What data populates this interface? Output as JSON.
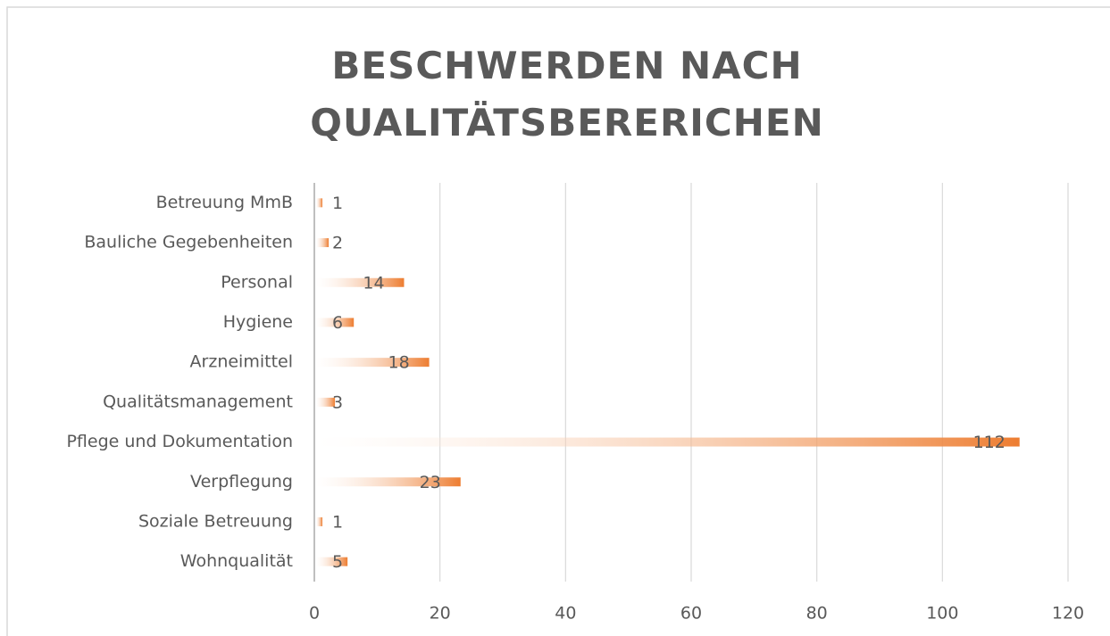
{
  "chart_data": {
    "type": "barh",
    "title": "BESCHWERDEN NACH QUALITÄTSBERERICHEN",
    "categories": [
      "Betreuung MmB",
      "Bauliche Gegebenheiten",
      "Personal",
      "Hygiene",
      "Arzneimittel",
      "Qualitätsmanagement",
      "Pflege und Dokumentation",
      "Verpflegung",
      "Soziale Betreuung",
      "Wohnqualität"
    ],
    "values": [
      1,
      2,
      14,
      6,
      18,
      3,
      112,
      23,
      1,
      5
    ],
    "color": "#ed7d31",
    "xlim": [
      0,
      120
    ],
    "xticks": [
      0,
      20,
      40,
      60,
      80,
      100,
      120
    ],
    "grid": true
  }
}
